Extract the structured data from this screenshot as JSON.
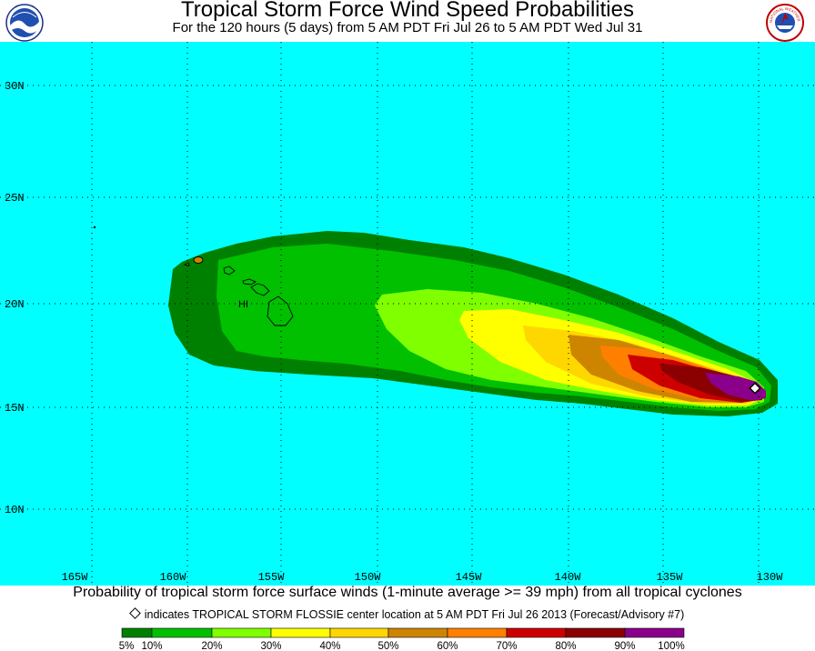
{
  "header": {
    "title": "Tropical Storm Force Wind Speed Probabilities",
    "subtitle": "For the 120 hours (5 days) from 5 AM PDT Fri Jul 26 to 5 AM PDT Wed Jul 31"
  },
  "logos": {
    "left": "noaa-logo",
    "right": "nws-logo",
    "right_text": "NATIONAL WEATHER SERVICE"
  },
  "map": {
    "ocean_color": "#00ffff",
    "latitude_labels": [
      "30N",
      "25N",
      "20N",
      "15N",
      "10N"
    ],
    "longitude_labels": [
      "165W",
      "160W",
      "155W",
      "150W",
      "145W",
      "140W",
      "135W",
      "130W"
    ],
    "islands_label": "HI",
    "storm_marker": "diamond"
  },
  "legend": {
    "colors": [
      "#008000",
      "#00c000",
      "#7fff00",
      "#ffff00",
      "#ffd700",
      "#cd8500",
      "#ff7f00",
      "#cd0000",
      "#8b0000",
      "#8b008b"
    ],
    "labels": [
      "5%",
      "10%",
      "20%",
      "30%",
      "40%",
      "50%",
      "60%",
      "70%",
      "80%",
      "90%",
      "100%"
    ]
  },
  "caption": {
    "line1": "Probability of tropical storm force surface winds (1-minute average >= 39 mph) from all tropical cyclones",
    "line2": "indicates TROPICAL STORM FLOSSIE center location at 5 AM PDT Fri Jul 26 2013 (Forecast/Advisory #7)"
  }
}
